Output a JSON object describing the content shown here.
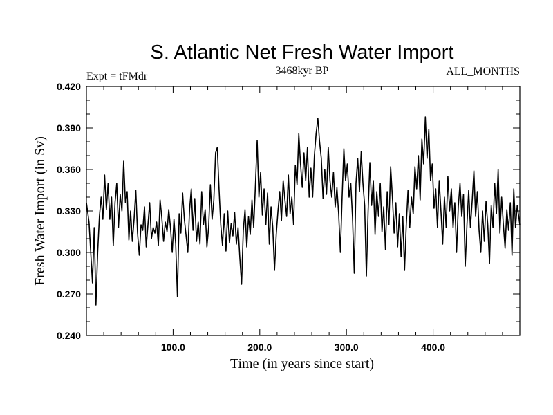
{
  "chart_data": {
    "type": "line",
    "title": "S. Atlantic Net Fresh Water Import",
    "subtitle": "3468kyr BP",
    "left_label": "Expt = tFMdr",
    "right_label": "ALL_MONTHS",
    "xlabel": "Time (in years since start)",
    "ylabel": "Fresh Water Import (in Sv)",
    "xlim": [
      0,
      500
    ],
    "ylim": [
      0.24,
      0.42
    ],
    "x_ticks": [
      100,
      200,
      300,
      400
    ],
    "x_tick_labels": [
      "100.0",
      "200.0",
      "300.0",
      "400.0"
    ],
    "y_ticks": [
      0.24,
      0.27,
      0.3,
      0.33,
      0.36,
      0.39,
      0.42
    ],
    "y_tick_labels": [
      "0.240",
      "0.270",
      "0.300",
      "0.330",
      "0.360",
      "0.390",
      "0.420"
    ],
    "grid": false,
    "series": [
      {
        "name": "Net Fresh Water Import",
        "color": "#000000",
        "points": [
          [
            0,
            0.336
          ],
          [
            3,
            0.322
          ],
          [
            5,
            0.3
          ],
          [
            7,
            0.278
          ],
          [
            9,
            0.318
          ],
          [
            11,
            0.262
          ],
          [
            13,
            0.3
          ],
          [
            15,
            0.326
          ],
          [
            17,
            0.34
          ],
          [
            19,
            0.324
          ],
          [
            21,
            0.356
          ],
          [
            23,
            0.331
          ],
          [
            25,
            0.35
          ],
          [
            27,
            0.324
          ],
          [
            29,
            0.34
          ],
          [
            31,
            0.305
          ],
          [
            33,
            0.336
          ],
          [
            35,
            0.35
          ],
          [
            37,
            0.318
          ],
          [
            39,
            0.342
          ],
          [
            41,
            0.33
          ],
          [
            43,
            0.366
          ],
          [
            45,
            0.336
          ],
          [
            47,
            0.344
          ],
          [
            49,
            0.309
          ],
          [
            51,
            0.33
          ],
          [
            53,
            0.308
          ],
          [
            55,
            0.324
          ],
          [
            57,
            0.345
          ],
          [
            59,
            0.314
          ],
          [
            61,
            0.298
          ],
          [
            63,
            0.32
          ],
          [
            65,
            0.316
          ],
          [
            67,
            0.333
          ],
          [
            69,
            0.304
          ],
          [
            71,
            0.32
          ],
          [
            73,
            0.336
          ],
          [
            75,
            0.31
          ],
          [
            77,
            0.318
          ],
          [
            79,
            0.314
          ],
          [
            81,
            0.322
          ],
          [
            83,
            0.305
          ],
          [
            85,
            0.338
          ],
          [
            87,
            0.325
          ],
          [
            89,
            0.308
          ],
          [
            91,
            0.322
          ],
          [
            93,
            0.315
          ],
          [
            95,
            0.331
          ],
          [
            97,
            0.318
          ],
          [
            99,
            0.3
          ],
          [
            101,
            0.324
          ],
          [
            103,
            0.306
          ],
          [
            105,
            0.268
          ],
          [
            107,
            0.328
          ],
          [
            109,
            0.314
          ],
          [
            111,
            0.343
          ],
          [
            113,
            0.324
          ],
          [
            115,
            0.312
          ],
          [
            117,
            0.3
          ],
          [
            119,
            0.331
          ],
          [
            121,
            0.346
          ],
          [
            123,
            0.316
          ],
          [
            125,
            0.339
          ],
          [
            127,
            0.308
          ],
          [
            129,
            0.322
          ],
          [
            131,
            0.306
          ],
          [
            133,
            0.344
          ],
          [
            135,
            0.32
          ],
          [
            137,
            0.331
          ],
          [
            139,
            0.304
          ],
          [
            141,
            0.318
          ],
          [
            143,
            0.349
          ],
          [
            145,
            0.324
          ],
          [
            147,
            0.338
          ],
          [
            149,
            0.372
          ],
          [
            151,
            0.376
          ],
          [
            153,
            0.346
          ],
          [
            155,
            0.32
          ],
          [
            157,
            0.305
          ],
          [
            159,
            0.328
          ],
          [
            161,
            0.301
          ],
          [
            163,
            0.33
          ],
          [
            165,
            0.307
          ],
          [
            167,
            0.321
          ],
          [
            169,
            0.312
          ],
          [
            171,
            0.329
          ],
          [
            173,
            0.306
          ],
          [
            175,
            0.318
          ],
          [
            177,
            0.296
          ],
          [
            179,
            0.277
          ],
          [
            181,
            0.316
          ],
          [
            183,
            0.331
          ],
          [
            185,
            0.304
          ],
          [
            187,
            0.326
          ],
          [
            189,
            0.313
          ],
          [
            191,
            0.338
          ],
          [
            193,
            0.318
          ],
          [
            195,
            0.349
          ],
          [
            197,
            0.381
          ],
          [
            199,
            0.34
          ],
          [
            201,
            0.358
          ],
          [
            203,
            0.327
          ],
          [
            205,
            0.346
          ],
          [
            207,
            0.32
          ],
          [
            209,
            0.343
          ],
          [
            211,
            0.306
          ],
          [
            213,
            0.333
          ],
          [
            215,
            0.318
          ],
          [
            217,
            0.287
          ],
          [
            219,
            0.313
          ],
          [
            221,
            0.33
          ],
          [
            223,
            0.344
          ],
          [
            225,
            0.323
          ],
          [
            227,
            0.352
          ],
          [
            229,
            0.338
          ],
          [
            231,
            0.326
          ],
          [
            233,
            0.356
          ],
          [
            235,
            0.328
          ],
          [
            237,
            0.34
          ],
          [
            239,
            0.32
          ],
          [
            241,
            0.363
          ],
          [
            243,
            0.349
          ],
          [
            245,
            0.386
          ],
          [
            247,
            0.364
          ],
          [
            249,
            0.347
          ],
          [
            251,
            0.372
          ],
          [
            253,
            0.352
          ],
          [
            255,
            0.376
          ],
          [
            257,
            0.34
          ],
          [
            259,
            0.361
          ],
          [
            261,
            0.34
          ],
          [
            263,
            0.37
          ],
          [
            265,
            0.386
          ],
          [
            267,
            0.397
          ],
          [
            269,
            0.38
          ],
          [
            271,
            0.368
          ],
          [
            273,
            0.339
          ],
          [
            275,
            0.36
          ],
          [
            277,
            0.342
          ],
          [
            279,
            0.376
          ],
          [
            281,
            0.352
          ],
          [
            283,
            0.34
          ],
          [
            285,
            0.358
          ],
          [
            287,
            0.333
          ],
          [
            289,
            0.347
          ],
          [
            291,
            0.328
          ],
          [
            293,
            0.3
          ],
          [
            295,
            0.34
          ],
          [
            297,
            0.375
          ],
          [
            299,
            0.352
          ],
          [
            301,
            0.364
          ],
          [
            303,
            0.34
          ],
          [
            305,
            0.35
          ],
          [
            307,
            0.325
          ],
          [
            309,
            0.285
          ],
          [
            311,
            0.35
          ],
          [
            313,
            0.368
          ],
          [
            315,
            0.344
          ],
          [
            317,
            0.373
          ],
          [
            319,
            0.35
          ],
          [
            321,
            0.334
          ],
          [
            323,
            0.283
          ],
          [
            325,
            0.33
          ],
          [
            327,
            0.365
          ],
          [
            329,
            0.334
          ],
          [
            331,
            0.352
          ],
          [
            333,
            0.313
          ],
          [
            335,
            0.344
          ],
          [
            337,
            0.326
          ],
          [
            339,
            0.35
          ],
          [
            341,
            0.315
          ],
          [
            343,
            0.333
          ],
          [
            345,
            0.302
          ],
          [
            347,
            0.344
          ],
          [
            349,
            0.32
          ],
          [
            351,
            0.362
          ],
          [
            353,
            0.34
          ],
          [
            355,
            0.314
          ],
          [
            357,
            0.336
          ],
          [
            359,
            0.304
          ],
          [
            361,
            0.328
          ],
          [
            363,
            0.297
          ],
          [
            365,
            0.326
          ],
          [
            367,
            0.287
          ],
          [
            369,
            0.32
          ],
          [
            371,
            0.345
          ],
          [
            373,
            0.318
          ],
          [
            375,
            0.34
          ],
          [
            377,
            0.328
          ],
          [
            379,
            0.362
          ],
          [
            381,
            0.346
          ],
          [
            383,
            0.37
          ],
          [
            385,
            0.338
          ],
          [
            387,
            0.382
          ],
          [
            389,
            0.364
          ],
          [
            391,
            0.398
          ],
          [
            393,
            0.368
          ],
          [
            395,
            0.389
          ],
          [
            397,
            0.352
          ],
          [
            399,
            0.364
          ],
          [
            401,
            0.332
          ],
          [
            403,
            0.346
          ],
          [
            405,
            0.318
          ],
          [
            407,
            0.352
          ],
          [
            409,
            0.33
          ],
          [
            411,
            0.306
          ],
          [
            413,
            0.34
          ],
          [
            415,
            0.318
          ],
          [
            417,
            0.355
          ],
          [
            419,
            0.33
          ],
          [
            421,
            0.346
          ],
          [
            423,
            0.318
          ],
          [
            425,
            0.336
          ],
          [
            427,
            0.3
          ],
          [
            429,
            0.333
          ],
          [
            431,
            0.35
          ],
          [
            433,
            0.326
          ],
          [
            435,
            0.342
          ],
          [
            437,
            0.29
          ],
          [
            439,
            0.32
          ],
          [
            441,
            0.345
          ],
          [
            443,
            0.318
          ],
          [
            445,
            0.337
          ],
          [
            447,
            0.359
          ],
          [
            449,
            0.326
          ],
          [
            451,
            0.344
          ],
          [
            453,
            0.316
          ],
          [
            455,
            0.3
          ],
          [
            457,
            0.33
          ],
          [
            459,
            0.308
          ],
          [
            461,
            0.337
          ],
          [
            463,
            0.32
          ],
          [
            465,
            0.292
          ],
          [
            467,
            0.334
          ],
          [
            469,
            0.318
          ],
          [
            471,
            0.35
          ],
          [
            473,
            0.328
          ],
          [
            475,
            0.36
          ],
          [
            477,
            0.314
          ],
          [
            479,
            0.34
          ],
          [
            481,
            0.32
          ],
          [
            483,
            0.303
          ],
          [
            485,
            0.331
          ],
          [
            487,
            0.316
          ],
          [
            489,
            0.336
          ],
          [
            491,
            0.298
          ],
          [
            493,
            0.346
          ],
          [
            495,
            0.318
          ],
          [
            497,
            0.334
          ],
          [
            500,
            0.32
          ]
        ]
      }
    ]
  }
}
